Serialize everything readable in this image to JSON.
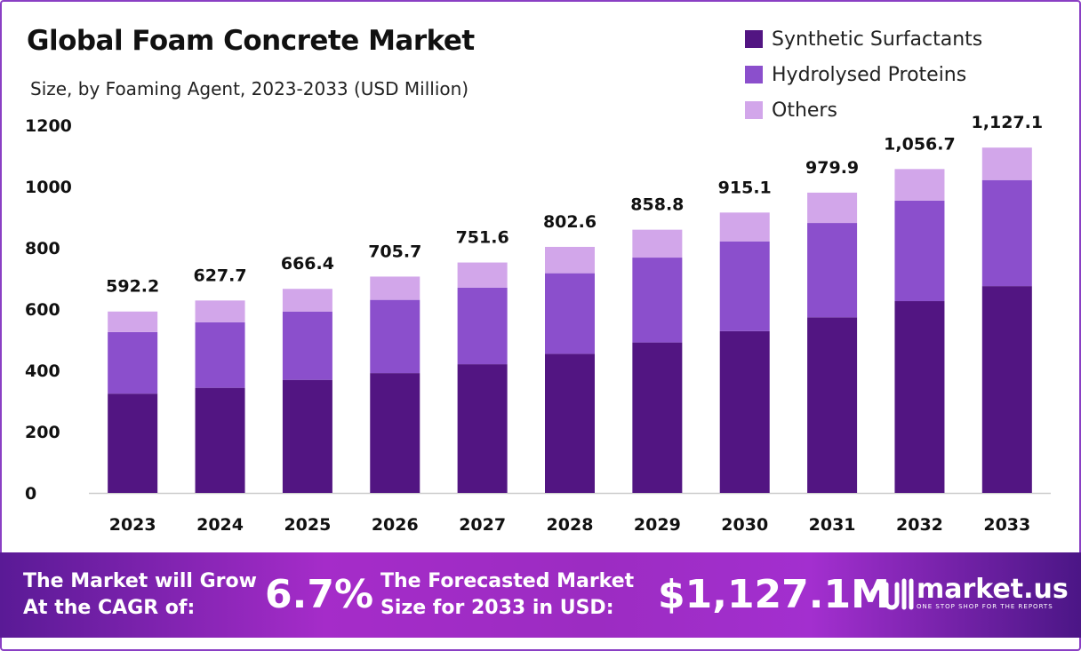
{
  "chart_data": {
    "type": "bar",
    "stacked": true,
    "title": "Global Foam Concrete Market",
    "subtitle": "Size, by Foaming Agent, 2023-2033 (USD Million)",
    "categories": [
      "2023",
      "2024",
      "2025",
      "2026",
      "2027",
      "2028",
      "2029",
      "2030",
      "2031",
      "2032",
      "2033"
    ],
    "series": [
      {
        "name": "Synthetic Surfactants",
        "color": "#521582",
        "values": [
          324,
          343,
          369,
          391,
          420,
          454,
          491,
          528,
          573,
          626,
          675
        ]
      },
      {
        "name": "Hydrolysed Proteins",
        "color": "#8b4fcc",
        "values": [
          201,
          214,
          223,
          239,
          250,
          263,
          277,
          293,
          308,
          328,
          346
        ]
      },
      {
        "name": "Others",
        "color": "#d2a6ea",
        "values": [
          67,
          71,
          74,
          76,
          82,
          86,
          91,
          94,
          99,
          103,
          106
        ]
      }
    ],
    "totals": [
      592.2,
      627.7,
      666.4,
      705.7,
      751.6,
      802.6,
      858.8,
      915.1,
      979.9,
      1056.7,
      1127.1
    ],
    "total_labels": [
      "592.2",
      "627.7",
      "666.4",
      "705.7",
      "751.6",
      "802.6",
      "858.8",
      "915.1",
      "979.9",
      "1,056.7",
      "1,127.1"
    ],
    "ylim": [
      0,
      1200
    ],
    "yticks": [
      "0",
      "200",
      "400",
      "600",
      "800",
      "1000",
      "1200"
    ],
    "grid": false,
    "legend_position": "top-right"
  },
  "footer": {
    "cagr_label_line1": "The Market will Grow",
    "cagr_label_line2": "At the CAGR of:",
    "cagr_value": "6.7%",
    "forecast_label_line1": "The Forecasted Market",
    "forecast_label_line2": "Size for 2033 in USD:",
    "forecast_value": "$1,127.1M",
    "logo_name": "market.us",
    "logo_tagline": "ONE STOP SHOP FOR THE REPORTS"
  }
}
